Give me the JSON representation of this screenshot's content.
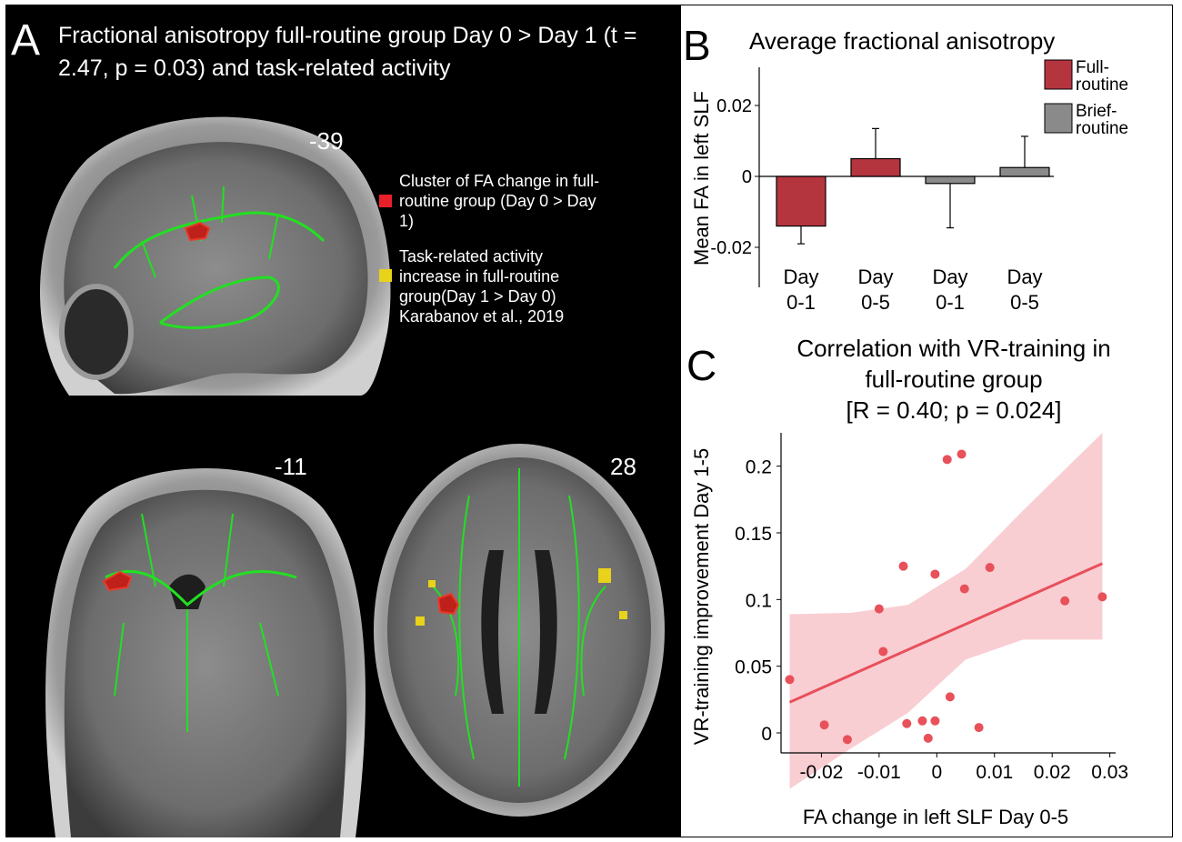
{
  "panel_a": {
    "letter": "A",
    "title": "Fractional anisotropy full-routine group Day 0 > Day 1 (t = 2.47, p = 0.03) and task-related activity",
    "slices": {
      "sagittal": "-39",
      "coronal": "-11",
      "axial": "28"
    },
    "legend": [
      {
        "color": "#e8202a",
        "text": "Cluster of FA change in full-routine group (Day 0 > Day 1)"
      },
      {
        "color": "#e8d21a",
        "text": "Task-related activity increase in full-routine group(Day 1 > Day 0) Karabanov et al., 2019"
      }
    ]
  },
  "panel_b": {
    "letter": "B",
    "chart_data": {
      "type": "bar",
      "title": "Average fractional anisotropy",
      "ylabel": "Mean FA in left SLF",
      "ylim": [
        -0.03,
        0.03
      ],
      "yticks": [
        0.02,
        0,
        -0.02
      ],
      "ytick_labels": [
        "0.02",
        "0",
        "-0.02"
      ],
      "categories": [
        [
          "Day",
          "0-1"
        ],
        [
          "Day",
          "0-5"
        ],
        [
          "Day",
          "0-1"
        ],
        [
          "Day",
          "0-5"
        ]
      ],
      "values": [
        -0.014,
        0.005,
        -0.002,
        0.0025
      ],
      "errors": [
        0.005,
        0.0085,
        0.0125,
        0.0088
      ],
      "colors": [
        "#b5353f",
        "#b5353f",
        "#8a8a8a",
        "#8a8a8a"
      ],
      "legend": [
        {
          "name": "Full-routine",
          "lines": [
            "Full-",
            "routine"
          ],
          "color": "#b5353f"
        },
        {
          "name": "Brief-routine",
          "lines": [
            "Brief-",
            "routine"
          ],
          "color": "#8a8a8a"
        }
      ]
    }
  },
  "panel_c": {
    "letter": "C",
    "chart_data": {
      "type": "scatter",
      "title": [
        "Correlation with VR-training in",
        "full-routine group",
        "[R = 0.40; p = 0.024]"
      ],
      "xlabel": "FA change in left SLF Day 0-5",
      "ylabel": "VR-training improvement Day 1-5",
      "xlim": [
        -0.027,
        0.031
      ],
      "ylim": [
        -0.015,
        0.225
      ],
      "xticks": [
        -0.02,
        -0.01,
        0,
        0.01,
        0.02,
        0.03
      ],
      "xtick_labels": [
        "-0.02",
        "-0.01",
        "0",
        "0.01",
        "0.02",
        "0.03"
      ],
      "yticks": [
        0,
        0.05,
        0.1,
        0.15,
        0.2
      ],
      "ytick_labels": [
        "0",
        "0.05",
        "0.1",
        "0.15",
        "0.2"
      ],
      "points": [
        [
          -0.0255,
          0.04
        ],
        [
          -0.0195,
          0.006
        ],
        [
          -0.0155,
          -0.005
        ],
        [
          -0.01,
          0.093
        ],
        [
          -0.0093,
          0.061
        ],
        [
          -0.0058,
          0.125
        ],
        [
          -0.0052,
          0.007
        ],
        [
          -0.0025,
          0.009
        ],
        [
          -0.0015,
          -0.004
        ],
        [
          -0.0003,
          0.009
        ],
        [
          -0.0003,
          0.119
        ],
        [
          0.0018,
          0.205
        ],
        [
          0.0023,
          0.027
        ],
        [
          0.0043,
          0.209
        ],
        [
          0.0048,
          0.108
        ],
        [
          0.0073,
          0.004
        ],
        [
          0.0092,
          0.124
        ],
        [
          0.0222,
          0.099
        ],
        [
          0.0287,
          0.102
        ]
      ],
      "fit": {
        "x": [
          -0.0255,
          0.0287
        ],
        "y": [
          0.023,
          0.127
        ]
      },
      "ci_upper": [
        [
          -0.0255,
          0.089
        ],
        [
          -0.015,
          0.09
        ],
        [
          -0.005,
          0.096
        ],
        [
          0.005,
          0.123
        ],
        [
          0.015,
          0.167
        ],
        [
          0.0287,
          0.225
        ]
      ],
      "ci_lower": [
        [
          -0.0255,
          -0.042
        ],
        [
          -0.015,
          -0.012
        ],
        [
          -0.005,
          0.015
        ],
        [
          0.005,
          0.055
        ],
        [
          0.015,
          0.07
        ],
        [
          0.0287,
          0.07
        ]
      ],
      "point_color": "#e8505a",
      "line_color": "#e8505a",
      "band_color": "#f7c6cb"
    }
  }
}
